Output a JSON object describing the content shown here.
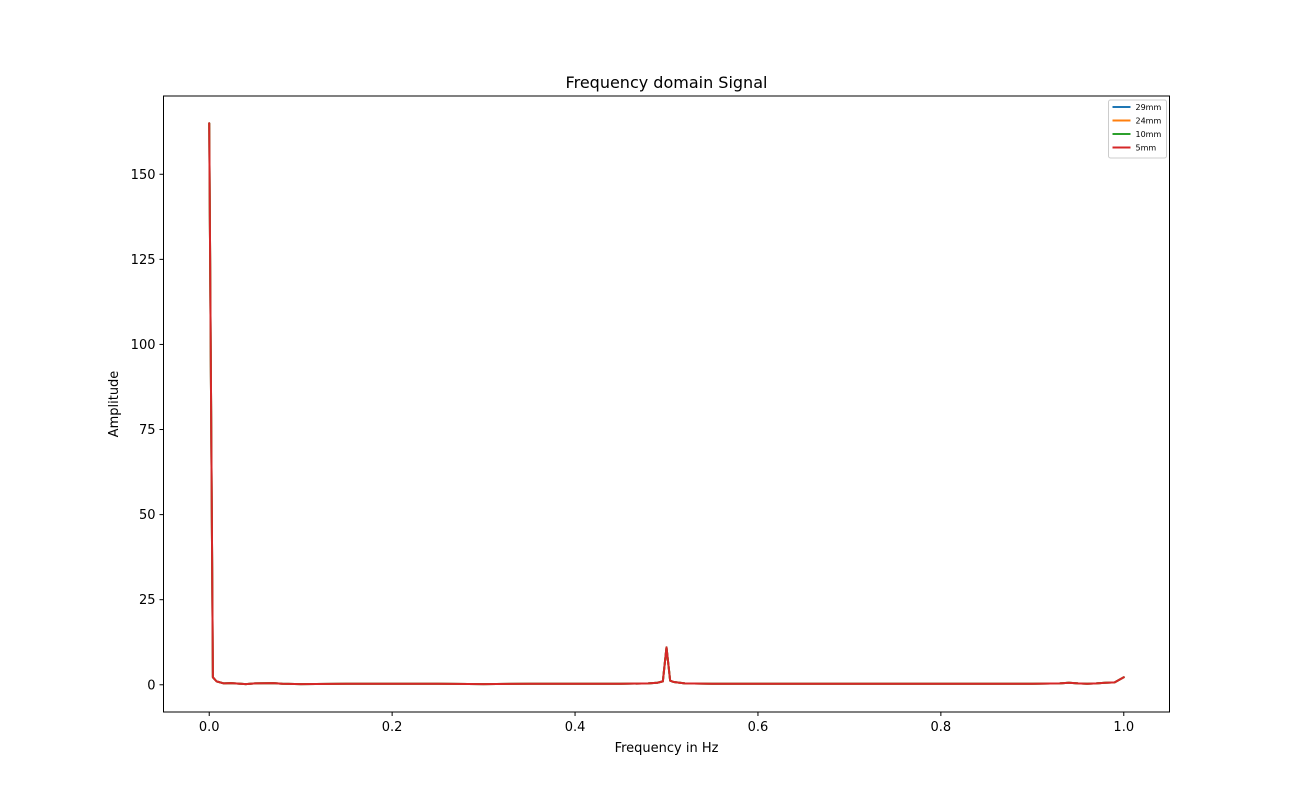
{
  "chart_data": {
    "type": "line",
    "title": "Frequency domain Signal",
    "xlabel": "Frequency in Hz",
    "ylabel": "Amplitude",
    "xlim": [
      -0.05,
      1.05
    ],
    "ylim": [
      -8,
      173
    ],
    "xticks": [
      0.0,
      0.2,
      0.4,
      0.6,
      0.8,
      1.0
    ],
    "xtick_labels": [
      "0.0",
      "0.2",
      "0.4",
      "0.6",
      "0.8",
      "1.0"
    ],
    "yticks": [
      0,
      25,
      50,
      75,
      100,
      125,
      150
    ],
    "ytick_labels": [
      "0",
      "25",
      "50",
      "75",
      "100",
      "125",
      "150"
    ],
    "grid": false,
    "legend_position": "top-right",
    "x": [
      0.0,
      0.004,
      0.008,
      0.016,
      0.024,
      0.04,
      0.05,
      0.07,
      0.08,
      0.1,
      0.15,
      0.2,
      0.25,
      0.3,
      0.35,
      0.4,
      0.45,
      0.48,
      0.49,
      0.496,
      0.5,
      0.504,
      0.508,
      0.52,
      0.55,
      0.6,
      0.65,
      0.7,
      0.75,
      0.8,
      0.85,
      0.9,
      0.93,
      0.94,
      0.95,
      0.96,
      0.97,
      0.98,
      0.99,
      1.0
    ],
    "series": [
      {
        "name": "29mm",
        "color": "#1f77b4",
        "values": [
          165,
          2.2,
          1.0,
          0.4,
          0.5,
          0.2,
          0.4,
          0.5,
          0.3,
          0.2,
          0.3,
          0.3,
          0.3,
          0.2,
          0.3,
          0.3,
          0.3,
          0.4,
          0.6,
          1.0,
          11,
          1.2,
          0.8,
          0.4,
          0.3,
          0.3,
          0.3,
          0.3,
          0.3,
          0.3,
          0.3,
          0.3,
          0.4,
          0.6,
          0.4,
          0.3,
          0.4,
          0.6,
          0.7,
          2.2
        ]
      },
      {
        "name": "24mm",
        "color": "#ff7f0e",
        "values": [
          165,
          2.2,
          1.0,
          0.4,
          0.5,
          0.2,
          0.4,
          0.5,
          0.3,
          0.2,
          0.3,
          0.3,
          0.3,
          0.2,
          0.3,
          0.3,
          0.3,
          0.4,
          0.6,
          1.0,
          11,
          1.2,
          0.8,
          0.4,
          0.3,
          0.3,
          0.3,
          0.3,
          0.3,
          0.3,
          0.3,
          0.3,
          0.4,
          0.6,
          0.4,
          0.3,
          0.4,
          0.6,
          0.7,
          2.2
        ]
      },
      {
        "name": "10mm",
        "color": "#2ca02c",
        "values": [
          165,
          2.2,
          1.0,
          0.4,
          0.5,
          0.2,
          0.4,
          0.5,
          0.3,
          0.2,
          0.3,
          0.3,
          0.3,
          0.2,
          0.3,
          0.3,
          0.3,
          0.4,
          0.6,
          1.0,
          11,
          1.2,
          0.8,
          0.4,
          0.3,
          0.3,
          0.3,
          0.3,
          0.3,
          0.3,
          0.3,
          0.3,
          0.4,
          0.6,
          0.4,
          0.3,
          0.4,
          0.6,
          0.7,
          2.2
        ]
      },
      {
        "name": "5mm",
        "color": "#d62728",
        "values": [
          165,
          2.2,
          1.0,
          0.4,
          0.5,
          0.2,
          0.4,
          0.5,
          0.3,
          0.2,
          0.3,
          0.3,
          0.3,
          0.2,
          0.3,
          0.3,
          0.3,
          0.4,
          0.6,
          1.0,
          11,
          1.2,
          0.8,
          0.4,
          0.3,
          0.3,
          0.3,
          0.3,
          0.3,
          0.3,
          0.3,
          0.3,
          0.4,
          0.6,
          0.4,
          0.3,
          0.4,
          0.6,
          0.7,
          2.2
        ]
      }
    ]
  }
}
